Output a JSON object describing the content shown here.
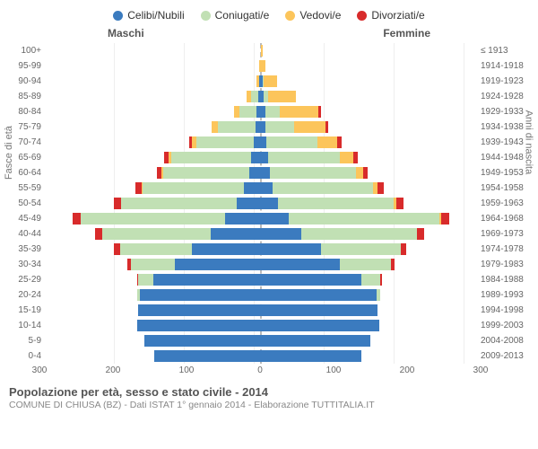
{
  "legend": [
    {
      "label": "Celibi/Nubili",
      "color": "#3b7bbf"
    },
    {
      "label": "Coniugati/e",
      "color": "#c1e0b4"
    },
    {
      "label": "Vedovi/e",
      "color": "#fcc55b"
    },
    {
      "label": "Divorziati/e",
      "color": "#d82b2b"
    }
  ],
  "gender_labels": {
    "male": "Maschi",
    "female": "Femmine"
  },
  "axis_titles": {
    "left": "Fasce di età",
    "right": "Anni di nascita"
  },
  "x_axis": {
    "max": 300,
    "ticks": [
      300,
      200,
      100,
      0,
      100,
      200,
      300
    ]
  },
  "footer": {
    "title": "Popolazione per età, sesso e stato civile - 2014",
    "subtitle": "COMUNE DI CHIUSA (BZ) - Dati ISTAT 1° gennaio 2014 - Elaborazione TUTTITALIA.IT"
  },
  "rows": [
    {
      "age": "100+",
      "birth": "≤ 1913",
      "m": [
        0,
        0,
        0,
        0
      ],
      "f": [
        0,
        0,
        2,
        0
      ]
    },
    {
      "age": "95-99",
      "birth": "1914-1918",
      "m": [
        0,
        0,
        2,
        0
      ],
      "f": [
        0,
        0,
        6,
        0
      ]
    },
    {
      "age": "90-94",
      "birth": "1919-1923",
      "m": [
        2,
        0,
        4,
        0
      ],
      "f": [
        2,
        2,
        18,
        0
      ]
    },
    {
      "age": "85-89",
      "birth": "1924-1928",
      "m": [
        4,
        10,
        6,
        0
      ],
      "f": [
        4,
        6,
        38,
        0
      ]
    },
    {
      "age": "80-84",
      "birth": "1929-1933",
      "m": [
        6,
        24,
        8,
        0
      ],
      "f": [
        6,
        20,
        54,
        4
      ]
    },
    {
      "age": "75-79",
      "birth": "1934-1938",
      "m": [
        8,
        52,
        8,
        0
      ],
      "f": [
        6,
        40,
        44,
        4
      ]
    },
    {
      "age": "70-74",
      "birth": "1939-1943",
      "m": [
        10,
        80,
        6,
        4
      ],
      "f": [
        8,
        70,
        28,
        6
      ]
    },
    {
      "age": "65-69",
      "birth": "1944-1948",
      "m": [
        14,
        110,
        4,
        6
      ],
      "f": [
        10,
        100,
        18,
        6
      ]
    },
    {
      "age": "60-64",
      "birth": "1949-1953",
      "m": [
        16,
        120,
        2,
        6
      ],
      "f": [
        12,
        120,
        10,
        6
      ]
    },
    {
      "age": "55-59",
      "birth": "1954-1958",
      "m": [
        24,
        140,
        2,
        8
      ],
      "f": [
        16,
        140,
        6,
        8
      ]
    },
    {
      "age": "50-54",
      "birth": "1959-1963",
      "m": [
        34,
        160,
        0,
        10
      ],
      "f": [
        24,
        160,
        4,
        10
      ]
    },
    {
      "age": "45-49",
      "birth": "1964-1968",
      "m": [
        50,
        200,
        0,
        12
      ],
      "f": [
        38,
        210,
        2,
        12
      ]
    },
    {
      "age": "40-44",
      "birth": "1969-1973",
      "m": [
        70,
        150,
        0,
        10
      ],
      "f": [
        56,
        160,
        0,
        10
      ]
    },
    {
      "age": "35-39",
      "birth": "1974-1978",
      "m": [
        96,
        100,
        0,
        8
      ],
      "f": [
        84,
        110,
        0,
        8
      ]
    },
    {
      "age": "30-34",
      "birth": "1979-1983",
      "m": [
        120,
        60,
        0,
        6
      ],
      "f": [
        110,
        70,
        0,
        6
      ]
    },
    {
      "age": "25-29",
      "birth": "1984-1988",
      "m": [
        150,
        20,
        0,
        2
      ],
      "f": [
        140,
        26,
        0,
        2
      ]
    },
    {
      "age": "20-24",
      "birth": "1989-1993",
      "m": [
        168,
        4,
        0,
        0
      ],
      "f": [
        160,
        6,
        0,
        0
      ]
    },
    {
      "age": "15-19",
      "birth": "1994-1998",
      "m": [
        170,
        0,
        0,
        0
      ],
      "f": [
        162,
        0,
        0,
        0
      ]
    },
    {
      "age": "10-14",
      "birth": "1999-2003",
      "m": [
        172,
        0,
        0,
        0
      ],
      "f": [
        164,
        0,
        0,
        0
      ]
    },
    {
      "age": "5-9",
      "birth": "2004-2008",
      "m": [
        162,
        0,
        0,
        0
      ],
      "f": [
        152,
        0,
        0,
        0
      ]
    },
    {
      "age": "0-4",
      "birth": "2009-2013",
      "m": [
        148,
        0,
        0,
        0
      ],
      "f": [
        140,
        0,
        0,
        0
      ]
    }
  ],
  "colors": {
    "grid": "#eeeeee",
    "center_line": "#bbbbbb",
    "bg": "#ffffff",
    "tick_text": "#666666",
    "title_text": "#555555",
    "sub_text": "#888888"
  },
  "fonts": {
    "legend": 12,
    "axis_tick": 10,
    "axis_title": 11,
    "footer_title": 13,
    "footer_sub": 10.5
  }
}
